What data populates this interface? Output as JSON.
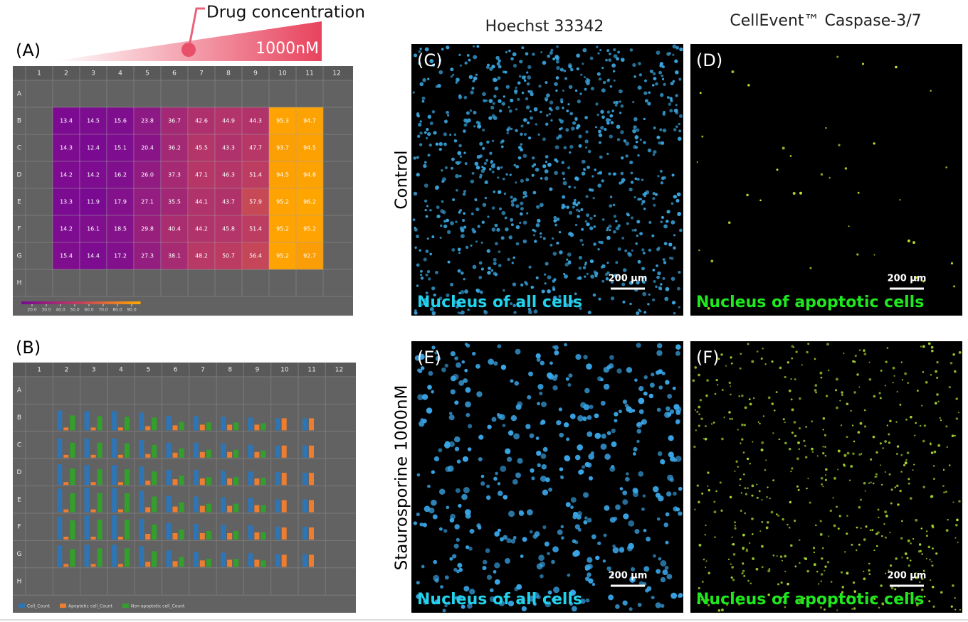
{
  "drug_label": "Drug concentration",
  "max_concentration": "1000nM",
  "panels": [
    "(A)",
    "(B)",
    "(C)",
    "(D)",
    "(E)",
    "(F)"
  ],
  "column_headers": [
    "Hoechst 33342",
    "CellEvent™ Caspase-3/7"
  ],
  "row_headers": [
    "Control",
    "Staurosporine 1000nM"
  ],
  "captions": [
    "Nucleus of all cells",
    "Nucleus of apoptotic cells"
  ],
  "scale_bar": "200 µm",
  "plate_a": {
    "columns": [
      "1",
      "2",
      "3",
      "4",
      "5",
      "6",
      "7",
      "8",
      "9",
      "10",
      "11",
      "12"
    ],
    "rows": [
      "A",
      "B",
      "C",
      "D",
      "E",
      "F",
      "G",
      "H"
    ],
    "values": [
      [
        13.4,
        14.5,
        15.6,
        23.8,
        36.7,
        42.6,
        44.9,
        44.3,
        95.3,
        94.7
      ],
      [
        14.3,
        12.4,
        15.1,
        20.4,
        36.2,
        45.5,
        43.3,
        47.7,
        93.7,
        94.5
      ],
      [
        14.2,
        14.2,
        16.2,
        26.0,
        37.3,
        47.1,
        46.3,
        51.4,
        94.5,
        94.8
      ],
      [
        13.3,
        11.9,
        17.9,
        27.1,
        35.5,
        44.1,
        43.7,
        57.9,
        95.2,
        96.2
      ],
      [
        14.2,
        16.1,
        18.5,
        29.8,
        40.4,
        44.2,
        45.8,
        51.4,
        95.2,
        95.2
      ],
      [
        15.4,
        14.4,
        17.2,
        27.3,
        38.1,
        48.2,
        50.7,
        56.4,
        95.2,
        92.7
      ]
    ],
    "value_labels": [
      [
        "13.4",
        "14.5",
        "15.6",
        "23.8",
        "36.7",
        "42.6",
        "44.9",
        "44.3",
        "95.3",
        "94.7"
      ],
      [
        "14.3",
        "12.4",
        "15.1",
        "20.4",
        "36.2",
        "45.5",
        "43.3",
        "47.7",
        "93.7",
        "94.5"
      ],
      [
        "14.2",
        "14.2",
        "16.2",
        "26.0",
        "37.3",
        "47.1",
        "46.3",
        "51.4",
        "94.5",
        "94.8"
      ],
      [
        "13.3",
        "11.9",
        "17.9",
        "27.1",
        "35.5",
        "44.1",
        "43.7",
        "57.9",
        "95.2",
        "96.2"
      ],
      [
        "14.2",
        "16.1",
        "18.5",
        "29.8",
        "40.4",
        "44.2",
        "45.8",
        "51.4",
        "95.2",
        "95.2"
      ],
      [
        "15.4",
        "14.4",
        "17.2",
        "27.3",
        "38.1",
        "48.2",
        "50.7",
        "56.4",
        "95.2",
        "92.7"
      ]
    ],
    "colorbar": {
      "range": [
        12.5,
        96
      ],
      "colors": [
        "#7a0a92",
        "#c2405e",
        "#ffa500"
      ],
      "ticks": [
        {
          "value": 20,
          "label": "20.0"
        },
        {
          "value": 30,
          "label": "30.0"
        },
        {
          "value": 40,
          "label": "40.0"
        },
        {
          "value": 50,
          "label": "50.0"
        },
        {
          "value": 60,
          "label": "60.0"
        },
        {
          "value": 70,
          "label": "70.0"
        },
        {
          "value": 80,
          "label": "80.0"
        },
        {
          "value": 90,
          "label": "90.0"
        }
      ]
    }
  },
  "plate_b": {
    "columns": [
      "1",
      "2",
      "3",
      "4",
      "5",
      "6",
      "7",
      "8",
      "9",
      "10",
      "11",
      "12"
    ],
    "rows": [
      "A",
      "B",
      "C",
      "D",
      "E",
      "F",
      "G",
      "H"
    ],
    "ylim": [
      0,
      38
    ],
    "series": [
      {
        "name": "Cell_Count",
        "color": "#2e75b6",
        "values": [
          [
            28,
            27,
            27,
            25,
            20,
            20,
            19,
            18,
            17,
            17
          ],
          [
            27,
            27,
            27,
            25,
            21,
            21,
            20,
            18,
            17,
            17
          ],
          [
            29,
            28,
            28,
            26,
            21,
            21,
            20,
            19,
            18,
            17
          ],
          [
            33,
            34,
            34,
            30,
            23,
            22,
            21,
            20,
            18,
            18
          ],
          [
            32,
            34,
            34,
            29,
            23,
            22,
            21,
            20,
            18,
            18
          ],
          [
            30,
            31,
            31,
            29,
            23,
            21,
            20,
            19,
            18,
            18
          ]
        ]
      },
      {
        "name": "Apoptotic cell_Count",
        "color": "#ed7d31",
        "values": [
          [
            4,
            4,
            4,
            6,
            7,
            8,
            8,
            8,
            17,
            17
          ],
          [
            4,
            4,
            4,
            5,
            7,
            8,
            8,
            8,
            17,
            17
          ],
          [
            4,
            4,
            4,
            6,
            8,
            9,
            9,
            9,
            17,
            17
          ],
          [
            4,
            4,
            4,
            7,
            8,
            9,
            9,
            10,
            17,
            17
          ],
          [
            4,
            4,
            4,
            8,
            9,
            9,
            9,
            10,
            17,
            17
          ],
          [
            4,
            4,
            4,
            7,
            8,
            9,
            10,
            10,
            17,
            17
          ]
        ]
      },
      {
        "name": "Non-apoptotic cell_Count",
        "color": "#33a02c",
        "values": [
          [
            21,
            20,
            19,
            18,
            12,
            11,
            11,
            10,
            0,
            0
          ],
          [
            21,
            21,
            20,
            18,
            13,
            11,
            11,
            10,
            0,
            0
          ],
          [
            23,
            22,
            22,
            19,
            13,
            11,
            11,
            10,
            0,
            0
          ],
          [
            27,
            27,
            27,
            22,
            14,
            12,
            12,
            10,
            0,
            0
          ],
          [
            27,
            28,
            28,
            21,
            14,
            12,
            12,
            10,
            0,
            0
          ],
          [
            25,
            26,
            26,
            22,
            14,
            11,
            11,
            9,
            0,
            0
          ]
        ]
      }
    ]
  }
}
